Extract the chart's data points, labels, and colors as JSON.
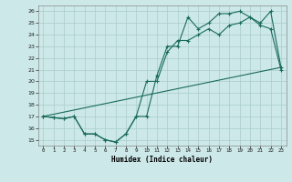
{
  "title": "",
  "xlabel": "Humidex (Indice chaleur)",
  "bg_color": "#cce8e8",
  "line_color": "#1a6b5a",
  "grid_color": "#aacccc",
  "xlim": [
    -0.5,
    23.5
  ],
  "ylim": [
    14.5,
    26.5
  ],
  "xticks": [
    0,
    1,
    2,
    3,
    4,
    5,
    6,
    7,
    8,
    9,
    10,
    11,
    12,
    13,
    14,
    15,
    16,
    17,
    18,
    19,
    20,
    21,
    22,
    23
  ],
  "yticks": [
    15,
    16,
    17,
    18,
    19,
    20,
    21,
    22,
    23,
    24,
    25,
    26
  ],
  "line1_x": [
    0,
    1,
    2,
    3,
    4,
    5,
    6,
    7,
    8,
    9,
    10,
    11,
    12,
    13,
    14,
    15,
    16,
    17,
    18,
    19,
    20,
    21,
    22,
    23
  ],
  "line1_y": [
    17.0,
    16.9,
    16.8,
    17.0,
    15.5,
    15.5,
    15.0,
    14.8,
    15.5,
    17.0,
    17.0,
    20.5,
    23.0,
    23.0,
    25.5,
    24.5,
    25.0,
    25.8,
    25.8,
    26.0,
    25.5,
    25.0,
    26.0,
    21.2
  ],
  "line2_x": [
    0,
    1,
    2,
    3,
    4,
    5,
    6,
    7,
    8,
    9,
    10,
    11,
    12,
    13,
    14,
    15,
    16,
    17,
    18,
    19,
    20,
    21,
    22,
    23
  ],
  "line2_y": [
    17.0,
    16.9,
    16.8,
    17.0,
    15.5,
    15.5,
    15.0,
    14.8,
    15.5,
    17.0,
    20.0,
    20.0,
    22.5,
    23.5,
    23.5,
    24.0,
    24.5,
    24.0,
    24.8,
    25.0,
    25.5,
    24.8,
    24.5,
    21.0
  ],
  "line3_x": [
    0,
    23
  ],
  "line3_y": [
    17.0,
    21.2
  ]
}
